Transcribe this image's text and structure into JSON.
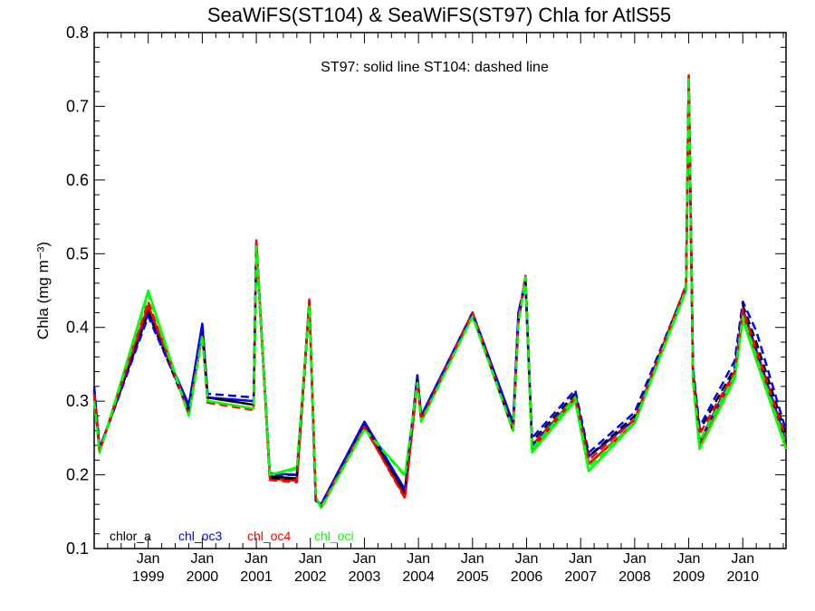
{
  "chart_data": {
    "type": "line",
    "title": "SeaWiFS(ST104) & SeaWiFS(ST97)  Chla for AtlS55",
    "annotation": "ST97: solid line   ST104: dashed line",
    "ylabel": "Chla (mg m⁻³)",
    "ylim": [
      0.1,
      0.8
    ],
    "yticks": [
      "0.1",
      "0.2",
      "0.3",
      "0.4",
      "0.5",
      "0.6",
      "0.7",
      "0.8"
    ],
    "xlim": [
      1998.0,
      2010.8
    ],
    "xticks": [
      {
        "year": 1999,
        "top": "Jan",
        "bottom": "1999"
      },
      {
        "year": 2000,
        "top": "Jan",
        "bottom": "2000"
      },
      {
        "year": 2001,
        "top": "Jan",
        "bottom": "2001"
      },
      {
        "year": 2002,
        "top": "Jan",
        "bottom": "2002"
      },
      {
        "year": 2003,
        "top": "Jan",
        "bottom": "2003"
      },
      {
        "year": 2004,
        "top": "Jan",
        "bottom": "2004"
      },
      {
        "year": 2005,
        "top": "Jan",
        "bottom": "2005"
      },
      {
        "year": 2006,
        "top": "Jan",
        "bottom": "2006"
      },
      {
        "year": 2007,
        "top": "Jan",
        "bottom": "2007"
      },
      {
        "year": 2008,
        "top": "Jan",
        "bottom": "2008"
      },
      {
        "year": 2009,
        "top": "Jan",
        "bottom": "2009"
      },
      {
        "year": 2010,
        "top": "Jan",
        "bottom": "2010"
      }
    ],
    "x": [
      1998.0,
      1998.1,
      1999.0,
      1999.75,
      2000.0,
      2000.1,
      2000.95,
      2001.0,
      2001.25,
      2001.75,
      2001.98,
      2002.1,
      2002.2,
      2003.0,
      2003.75,
      2003.98,
      2004.05,
      2005.0,
      2005.75,
      2005.85,
      2005.98,
      2006.1,
      2006.9,
      2007.15,
      2008.0,
      2008.95,
      2009.0,
      2009.08,
      2009.2,
      2009.85,
      2010.0,
      2010.25,
      2010.8
    ],
    "series": [
      {
        "name": "chlor_a",
        "style": "solid",
        "color": "#000000",
        "values": [
          0.31,
          0.235,
          0.425,
          0.29,
          0.4,
          0.305,
          0.295,
          0.51,
          0.198,
          0.195,
          0.435,
          0.165,
          0.16,
          0.27,
          0.175,
          0.33,
          0.275,
          0.42,
          0.26,
          0.415,
          0.465,
          0.235,
          0.305,
          0.215,
          0.27,
          0.455,
          0.74,
          0.33,
          0.24,
          0.335,
          0.42,
          0.365,
          0.24
        ]
      },
      {
        "name": "chl_oc3",
        "style": "solid",
        "color": "#0000ff",
        "values": [
          0.315,
          0.235,
          0.42,
          0.295,
          0.405,
          0.305,
          0.3,
          0.515,
          0.202,
          0.2,
          0.435,
          0.165,
          0.16,
          0.272,
          0.18,
          0.335,
          0.28,
          0.42,
          0.27,
          0.42,
          0.46,
          0.24,
          0.305,
          0.225,
          0.275,
          0.45,
          0.73,
          0.335,
          0.245,
          0.34,
          0.425,
          0.37,
          0.245
        ]
      },
      {
        "name": "chl_oc4",
        "style": "solid",
        "color": "#ff0000",
        "values": [
          0.31,
          0.232,
          0.43,
          0.285,
          0.39,
          0.3,
          0.29,
          0.515,
          0.195,
          0.192,
          0.435,
          0.168,
          0.158,
          0.265,
          0.17,
          0.325,
          0.275,
          0.42,
          0.26,
          0.41,
          0.47,
          0.235,
          0.3,
          0.215,
          0.27,
          0.455,
          0.74,
          0.33,
          0.24,
          0.335,
          0.42,
          0.36,
          0.238
        ]
      },
      {
        "name": "chl_oci",
        "style": "solid",
        "color": "#00ff00",
        "values": [
          0.3,
          0.23,
          0.45,
          0.28,
          0.39,
          0.3,
          0.29,
          0.51,
          0.2,
          0.21,
          0.43,
          0.17,
          0.155,
          0.262,
          0.2,
          0.325,
          0.272,
          0.415,
          0.26,
          0.405,
          0.47,
          0.23,
          0.3,
          0.205,
          0.27,
          0.45,
          0.74,
          0.325,
          0.235,
          0.33,
          0.41,
          0.355,
          0.235
        ]
      },
      {
        "name": "chlor_a",
        "style": "dashed",
        "color": "#000000",
        "values": [
          0.315,
          0.235,
          0.42,
          0.285,
          0.395,
          0.305,
          0.295,
          0.51,
          0.195,
          0.195,
          0.43,
          0.165,
          0.16,
          0.27,
          0.175,
          0.33,
          0.275,
          0.42,
          0.26,
          0.41,
          0.465,
          0.245,
          0.31,
          0.225,
          0.28,
          0.455,
          0.735,
          0.34,
          0.26,
          0.345,
          0.43,
          0.38,
          0.255
        ]
      },
      {
        "name": "chl_oc3",
        "style": "dashed",
        "color": "#0000ff",
        "values": [
          0.32,
          0.235,
          0.415,
          0.29,
          0.405,
          0.31,
          0.305,
          0.515,
          0.2,
          0.2,
          0.435,
          0.165,
          0.16,
          0.272,
          0.18,
          0.335,
          0.28,
          0.42,
          0.27,
          0.42,
          0.465,
          0.25,
          0.315,
          0.23,
          0.285,
          0.455,
          0.73,
          0.345,
          0.265,
          0.355,
          0.435,
          0.395,
          0.26
        ]
      },
      {
        "name": "chl_oc4",
        "style": "dashed",
        "color": "#ff0000",
        "values": [
          0.31,
          0.232,
          0.435,
          0.283,
          0.39,
          0.298,
          0.288,
          0.518,
          0.193,
          0.19,
          0.438,
          0.168,
          0.158,
          0.265,
          0.168,
          0.325,
          0.275,
          0.42,
          0.26,
          0.41,
          0.47,
          0.24,
          0.305,
          0.22,
          0.275,
          0.458,
          0.742,
          0.335,
          0.255,
          0.34,
          0.425,
          0.37,
          0.25
        ]
      },
      {
        "name": "chl_oci",
        "style": "dashed",
        "color": "#00ff00",
        "values": [
          0.3,
          0.23,
          0.445,
          0.28,
          0.39,
          0.3,
          0.29,
          0.51,
          0.2,
          0.208,
          0.43,
          0.17,
          0.155,
          0.262,
          0.198,
          0.325,
          0.272,
          0.415,
          0.26,
          0.405,
          0.468,
          0.235,
          0.305,
          0.21,
          0.272,
          0.452,
          0.74,
          0.33,
          0.245,
          0.335,
          0.415,
          0.36,
          0.24
        ]
      }
    ],
    "legend": [
      {
        "label": "chlor_a",
        "color": "#000000"
      },
      {
        "label": "chl_oc3",
        "color": "#0000ff"
      },
      {
        "label": "chl_oc4",
        "color": "#ff0000"
      },
      {
        "label": "chl_oci",
        "color": "#00ff00"
      }
    ],
    "legend_position": "bottom-left",
    "grid": false
  }
}
